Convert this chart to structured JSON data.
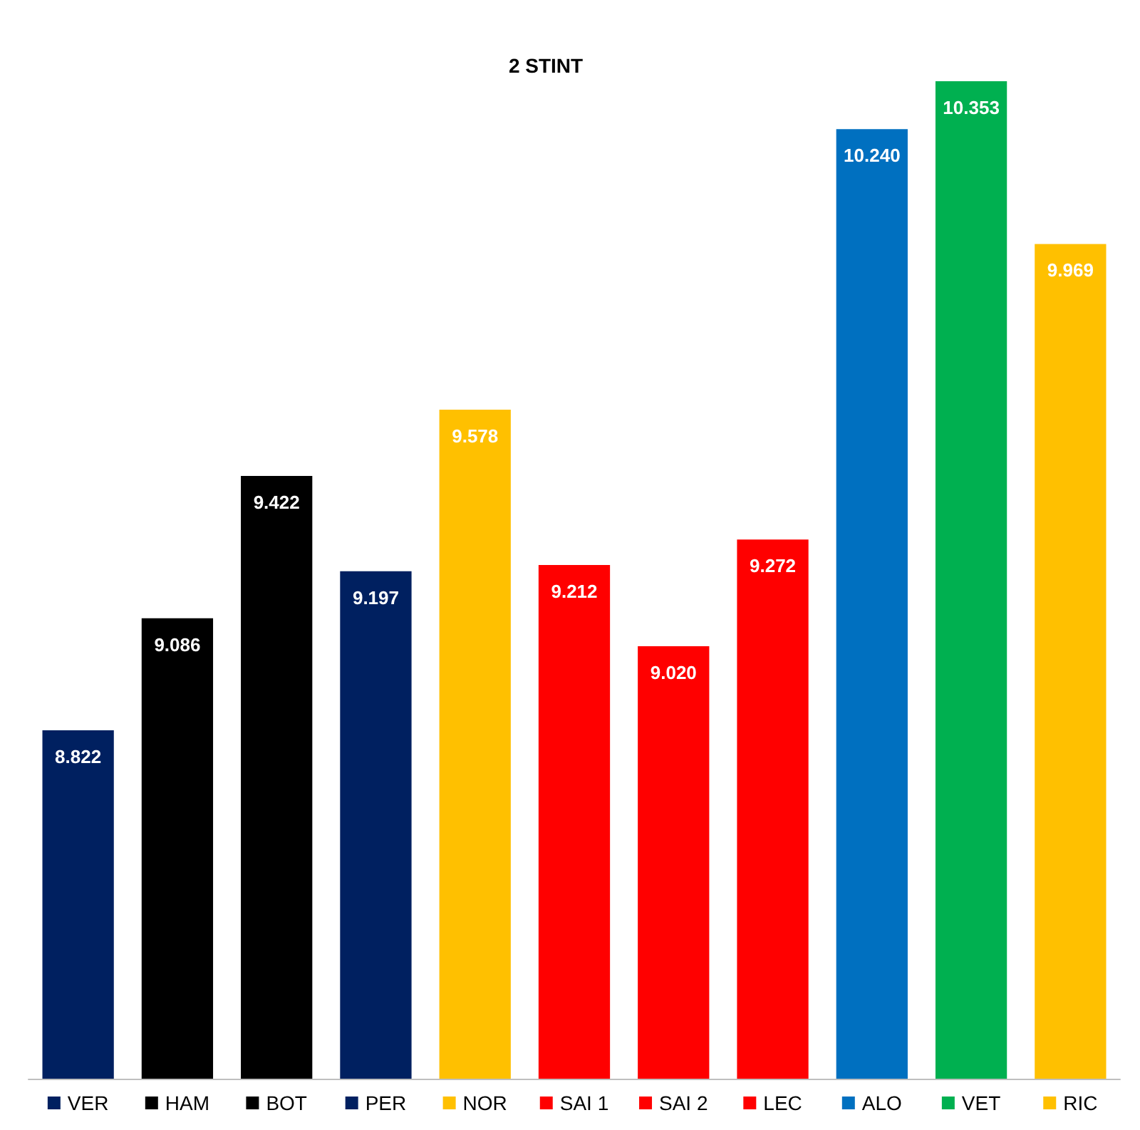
{
  "chart_data": {
    "type": "bar",
    "title": "2 STINT",
    "categories": [
      "VER",
      "HAM",
      "BOT",
      "PER",
      "NOR",
      "SAI 1",
      "SAI 2",
      "LEC",
      "ALO",
      "VET",
      "RIC"
    ],
    "values": [
      8.822,
      9.086,
      9.422,
      9.197,
      9.578,
      9.212,
      9.02,
      9.272,
      10.24,
      10.353,
      9.969
    ],
    "value_labels": [
      "8.822",
      "9.086",
      "9.422",
      "9.197",
      "9.578",
      "9.212",
      "9.020",
      "9.272",
      "10.240",
      "10.353",
      "9.969"
    ],
    "colors": [
      "#002060",
      "#000000",
      "#000000",
      "#002060",
      "#ffc000",
      "#ff0000",
      "#ff0000",
      "#ff0000",
      "#0070c0",
      "#00b050",
      "#ffc000"
    ],
    "ylim": [
      8,
      10.353
    ],
    "grid": false,
    "tick_labels": "x"
  }
}
